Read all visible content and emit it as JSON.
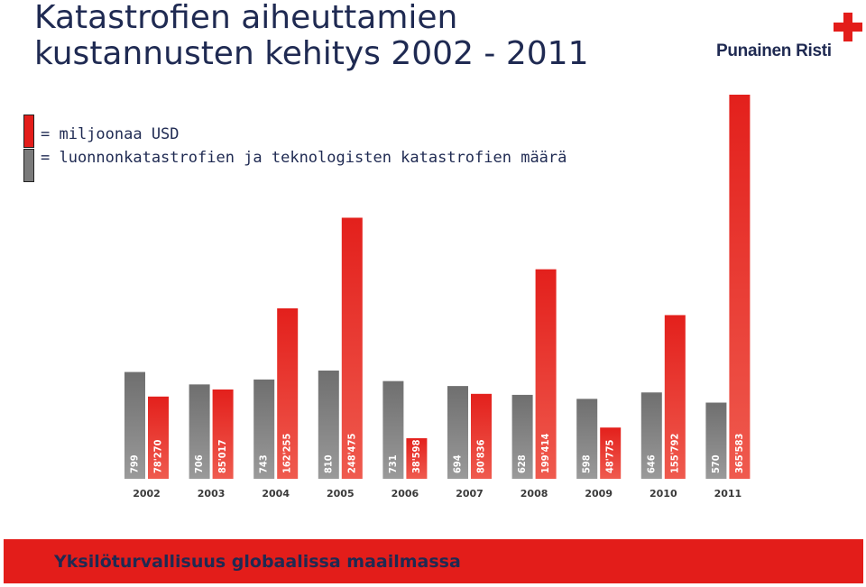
{
  "title": {
    "line1": "Katastrofien aiheuttamien",
    "line2": "kustannusten kehitys 2002 - 2011"
  },
  "logo": {
    "text": "Punainen Risti",
    "icon": "red-cross-icon",
    "color": "#e31d1a"
  },
  "legend": [
    {
      "color": "#e31d1a",
      "label": "= miljoonaa USD"
    },
    {
      "color": "#7a7a7a",
      "label": "= luonnonkatastrofien ja teknologisten katastrofien määrä"
    }
  ],
  "footer": {
    "text": "Yksilöturvallisuus globaalissa maailmassa",
    "color": "#e31d1a"
  },
  "chart_data": {
    "type": "bar",
    "categories": [
      "2002",
      "2003",
      "2004",
      "2005",
      "2006",
      "2007",
      "2008",
      "2009",
      "2010",
      "2011"
    ],
    "series": [
      {
        "name": "luonnonkatastrofien ja teknologisten katastrofien määrä",
        "color": "#7a7a7a",
        "values": [
          799,
          706,
          743,
          810,
          731,
          694,
          628,
          598,
          646,
          570
        ],
        "labels": [
          "799",
          "706",
          "743",
          "810",
          "731",
          "694",
          "628",
          "598",
          "646",
          "570"
        ]
      },
      {
        "name": "miljoonaa USD",
        "color": "#e31d1a",
        "values": [
          78270,
          85017,
          162255,
          248475,
          38598,
          80836,
          199414,
          48775,
          155792,
          365583
        ],
        "labels": [
          "78'270",
          "85'017",
          "162'255",
          "248'475",
          "38'598",
          "80'836",
          "199'414",
          "48'775",
          "155'792",
          "365'583"
        ]
      }
    ],
    "title": "",
    "xlabel": "",
    "ylabel": "",
    "grid": false,
    "legend_position": "top-left"
  }
}
